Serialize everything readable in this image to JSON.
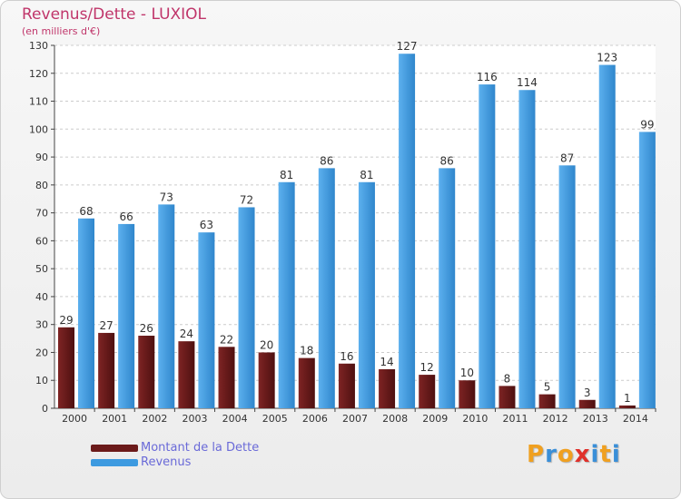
{
  "title": "Revenus/Dette - LUXIOL",
  "subtitle": "(en milliers d'€)",
  "logo": {
    "letters": [
      "P",
      "r",
      "o",
      "x",
      "i",
      "t",
      "i"
    ],
    "colors": [
      "#f0a020",
      "#3a8fd8",
      "#f0a020",
      "#e0302a",
      "#3a8fd8",
      "#f0a020",
      "#3a8fd8"
    ]
  },
  "colors": {
    "dette": "#6b1a1a",
    "revenus": "#3d9ae0",
    "axis": "#444444",
    "grid": "#cccccc",
    "label_text": "#333333"
  },
  "chart_data": {
    "type": "bar",
    "title": "Revenus/Dette - LUXIOL",
    "subtitle": "(en milliers d'€)",
    "categories": [
      "2000",
      "2001",
      "2002",
      "2003",
      "2004",
      "2005",
      "2006",
      "2007",
      "2008",
      "2009",
      "2010",
      "2011",
      "2012",
      "2013",
      "2014"
    ],
    "series": [
      {
        "name": "Montant de la Dette",
        "values": [
          29,
          27,
          26,
          24,
          22,
          20,
          18,
          16,
          14,
          12,
          10,
          8,
          5,
          3,
          1
        ]
      },
      {
        "name": "Revenus",
        "values": [
          68,
          66,
          73,
          63,
          72,
          81,
          86,
          81,
          127,
          86,
          116,
          114,
          87,
          123,
          99
        ]
      }
    ],
    "yticks": [
      0,
      10,
      20,
      30,
      40,
      50,
      60,
      70,
      80,
      90,
      100,
      110,
      120,
      130
    ],
    "ylim": [
      0,
      130
    ],
    "grid": true,
    "legend_placement": "bottom-left"
  }
}
